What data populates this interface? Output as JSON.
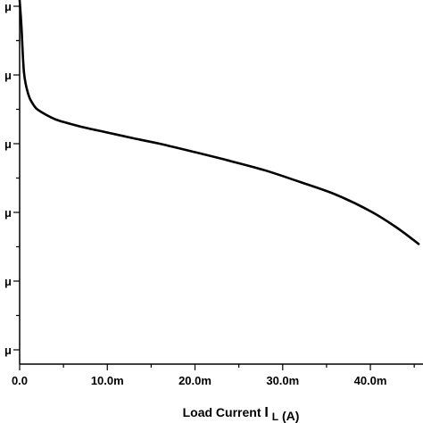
{
  "chart_data": {
    "type": "line",
    "title": "",
    "xlabel": "Load Current",
    "xlabel_symbol": "I",
    "xlabel_subscript": "L",
    "xlabel_unit": "(A)",
    "ylabel": "",
    "xlim": [
      0,
      0.046
    ],
    "x_ticks": [
      0,
      0.01,
      0.02,
      0.03,
      0.04
    ],
    "x_tick_labels": [
      "0.0",
      "10.0m",
      "20.0m",
      "30.0m",
      "40.0m"
    ],
    "y_tick_labels": [
      "μ",
      "μ",
      "μ",
      "μ",
      "μ",
      "μ"
    ],
    "grid": false,
    "legend": "none",
    "line_color": "#000000",
    "series": [
      {
        "x": [
          0,
          0.0002,
          0.0005,
          0.001,
          0.0015,
          0.002,
          0.003,
          0.004,
          0.005,
          0.007,
          0.01,
          0.013,
          0.016,
          0.02,
          0.024,
          0.028,
          0.032,
          0.036,
          0.04,
          0.043,
          0.0455
        ],
        "y": [
          1.0,
          0.93,
          0.8,
          0.74,
          0.715,
          0.7,
          0.685,
          0.673,
          0.665,
          0.652,
          0.636,
          0.62,
          0.605,
          0.582,
          0.558,
          0.532,
          0.5,
          0.466,
          0.42,
          0.375,
          0.33
        ]
      }
    ]
  }
}
